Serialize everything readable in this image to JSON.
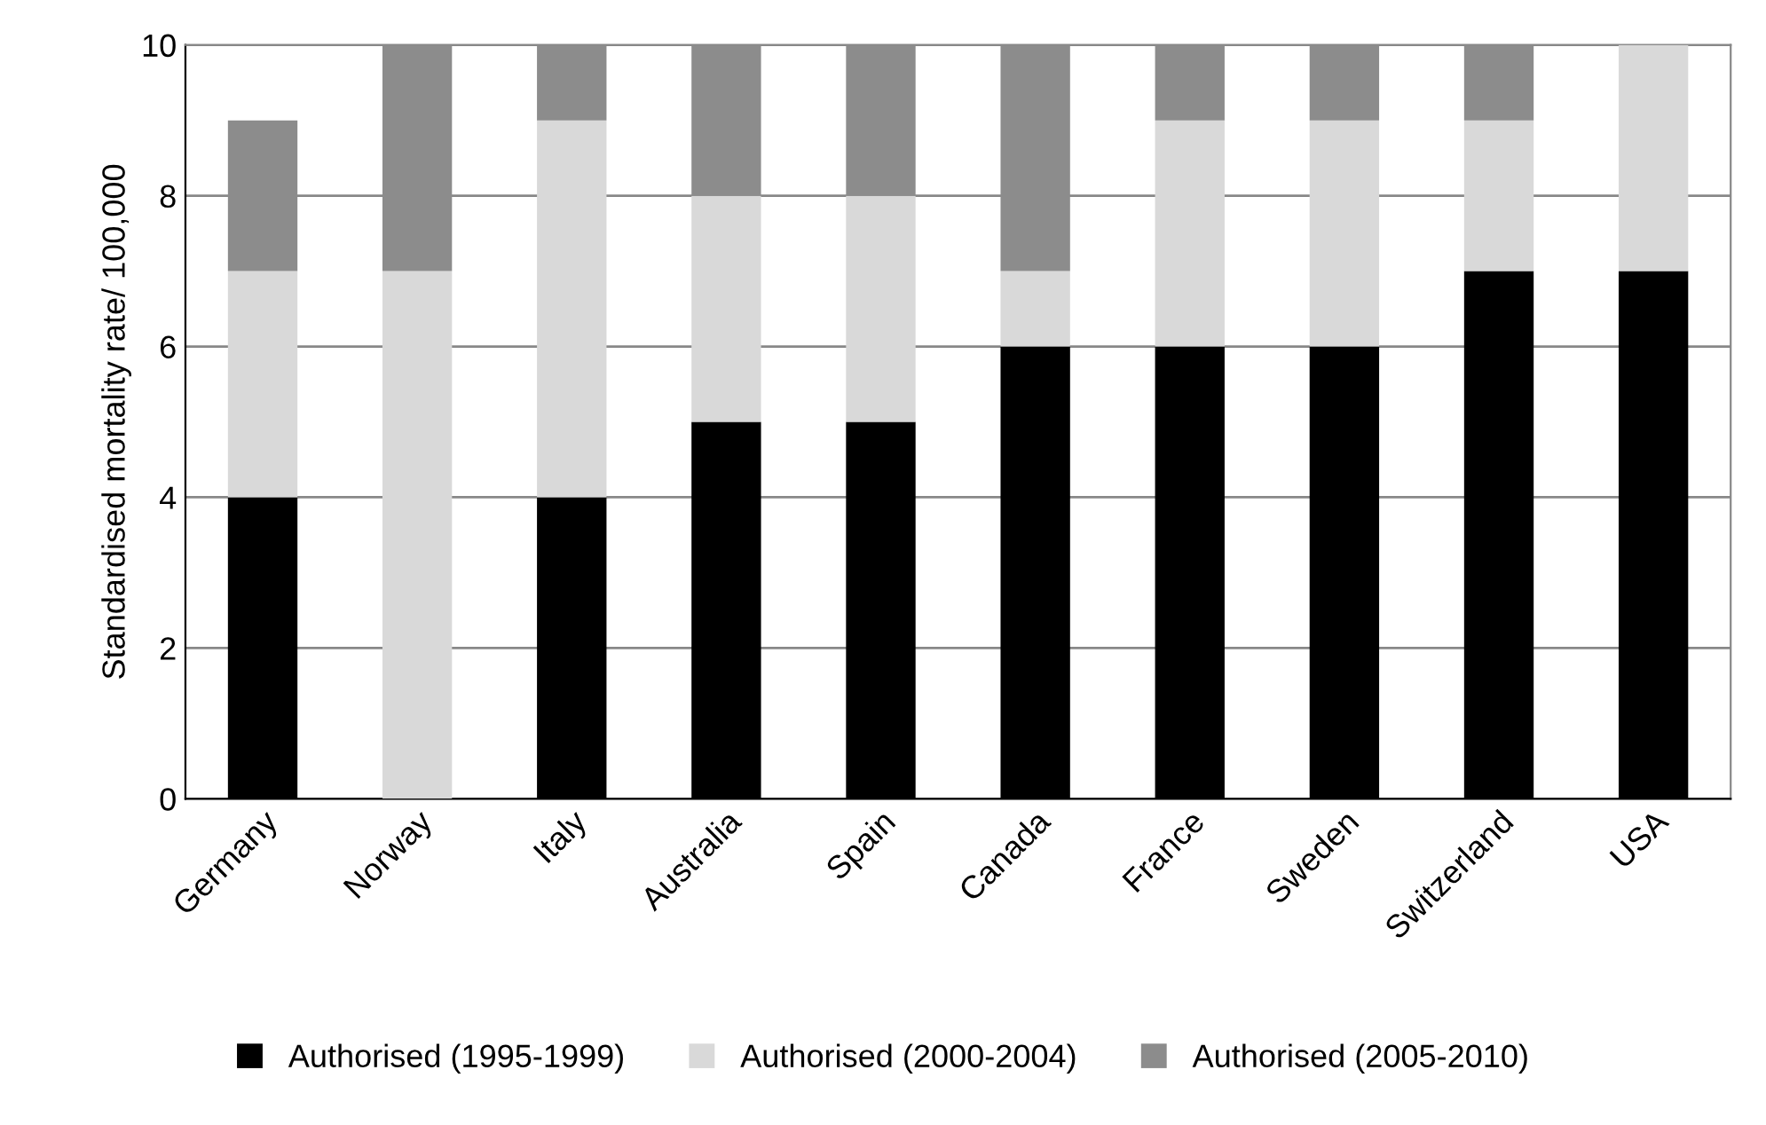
{
  "chart_data": {
    "type": "bar",
    "stacked": true,
    "ylabel": "Standardised mortality rate/ 100,000",
    "categories": [
      "Germany",
      "Norway",
      "Italy",
      "Australia",
      "Spain",
      "Canada",
      "France",
      "Sweden",
      "Switzerland",
      "USA"
    ],
    "series": [
      {
        "name": "Authorised (1995-1999)",
        "color": "#000000",
        "values": [
          4,
          0,
          4,
          5,
          5,
          6,
          6,
          6,
          7,
          7
        ]
      },
      {
        "name": "Authorised (2000-2004)",
        "color": "#d9d9d9",
        "values": [
          3,
          7,
          5,
          3,
          3,
          1,
          3,
          3,
          2,
          3
        ]
      },
      {
        "name": "Authorised (2005-2010)",
        "color": "#8c8c8c",
        "values": [
          2,
          3,
          1,
          2,
          2,
          3,
          1,
          1,
          1,
          0
        ]
      }
    ],
    "ylim": [
      0,
      10
    ],
    "yticks": [
      0,
      2,
      4,
      6,
      8,
      10
    ],
    "grid": "y",
    "legend": "bottom"
  }
}
